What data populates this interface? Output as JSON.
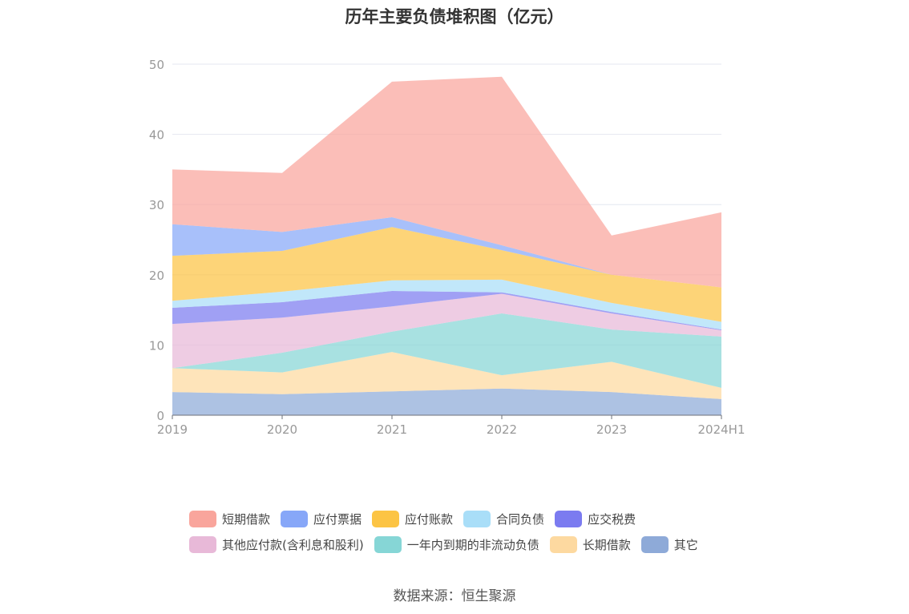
{
  "chart_data": {
    "type": "area",
    "stacked": true,
    "title": "历年主要负债堆积图（亿元）",
    "categories": [
      "2019",
      "2020",
      "2021",
      "2022",
      "2023",
      "2024H1"
    ],
    "ylim": [
      0,
      50
    ],
    "yticks": [
      0,
      10,
      20,
      30,
      40,
      50
    ],
    "grid": true,
    "legend_position": "bottom",
    "series": [
      {
        "name": "其它",
        "color": "#8eaad8",
        "values": [
          3.3,
          3.0,
          3.4,
          3.8,
          3.3,
          2.3
        ]
      },
      {
        "name": "长期借款",
        "color": "#fdd9a0",
        "values": [
          3.4,
          3.1,
          5.6,
          1.9,
          4.3,
          1.6
        ]
      },
      {
        "name": "一年内到期的非流动负债",
        "color": "#86d6d6",
        "values": [
          0.0,
          2.8,
          2.9,
          8.8,
          4.6,
          7.3
        ]
      },
      {
        "name": "其他应付款(含利息和股利)",
        "color": "#e8b9d8",
        "values": [
          6.3,
          5.0,
          3.6,
          2.8,
          2.3,
          0.9
        ]
      },
      {
        "name": "应交税费",
        "color": "#7b7bf0",
        "values": [
          2.3,
          2.2,
          2.2,
          0.2,
          0.2,
          0.1
        ]
      },
      {
        "name": "合同负债",
        "color": "#a9def8",
        "values": [
          1.0,
          1.5,
          1.5,
          1.8,
          1.3,
          1.1
        ]
      },
      {
        "name": "应付账款",
        "color": "#fcc444",
        "values": [
          6.4,
          5.8,
          7.6,
          4.2,
          4.0,
          4.9
        ]
      },
      {
        "name": "应付票据",
        "color": "#87a7f8",
        "values": [
          4.5,
          2.7,
          1.4,
          0.7,
          0.0,
          0.0
        ]
      },
      {
        "name": "短期借款",
        "color": "#f9a59c",
        "values": [
          7.8,
          8.4,
          19.3,
          24.0,
          5.6,
          10.7
        ]
      }
    ]
  },
  "legend": {
    "rows": [
      [
        {
          "name": "短期借款",
          "color": "#f9a59c"
        },
        {
          "name": "应付票据",
          "color": "#87a7f8"
        },
        {
          "name": "应付账款",
          "color": "#fcc444"
        },
        {
          "name": "合同负债",
          "color": "#a9def8"
        },
        {
          "name": "应交税费",
          "color": "#7b7bf0"
        }
      ],
      [
        {
          "name": "其他应付款(含利息和股利)",
          "color": "#e8b9d8"
        },
        {
          "name": "一年内到期的非流动负债",
          "color": "#86d6d6"
        },
        {
          "name": "长期借款",
          "color": "#fdd9a0"
        },
        {
          "name": "其它",
          "color": "#8eaad8"
        }
      ]
    ]
  },
  "source": "数据来源：恒生聚源"
}
